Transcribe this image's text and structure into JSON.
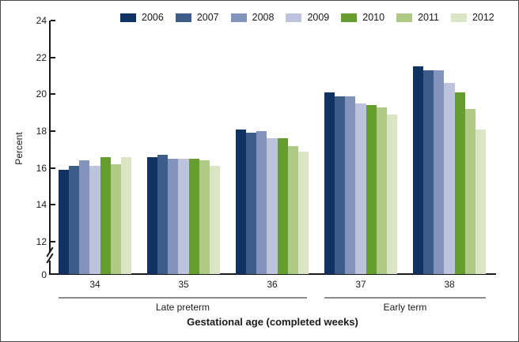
{
  "chart_data": {
    "type": "bar",
    "title": "",
    "ylabel": "Percent",
    "xlabel": "Gestational age (completed weeks)",
    "categories": [
      "34",
      "35",
      "36",
      "37",
      "38"
    ],
    "category_groups": [
      {
        "label": "Late preterm",
        "first_category": "34",
        "last_category": "36"
      },
      {
        "label": "Early term",
        "first_category": "37",
        "last_category": "38"
      }
    ],
    "series": [
      {
        "name": "2006",
        "color": "#0F3263",
        "values": [
          15.9,
          16.6,
          18.1,
          20.1,
          21.5
        ]
      },
      {
        "name": "2007",
        "color": "#3D5C8A",
        "values": [
          16.1,
          16.7,
          17.9,
          19.9,
          21.3
        ]
      },
      {
        "name": "2008",
        "color": "#8394BC",
        "values": [
          16.4,
          16.5,
          18.0,
          19.9,
          21.3
        ]
      },
      {
        "name": "2009",
        "color": "#BDC3DD",
        "values": [
          16.1,
          16.5,
          17.6,
          19.5,
          20.6
        ]
      },
      {
        "name": "2010",
        "color": "#669D2E",
        "values": [
          16.6,
          16.5,
          17.6,
          19.4,
          20.1
        ]
      },
      {
        "name": "2011",
        "color": "#AFCA85",
        "values": [
          16.2,
          16.4,
          17.2,
          19.3,
          19.2
        ]
      },
      {
        "name": "2012",
        "color": "#DAE5C5",
        "values": [
          16.6,
          16.1,
          16.9,
          18.9,
          18.1
        ]
      }
    ],
    "y_axis": {
      "ticks": [
        24,
        22,
        20,
        18,
        16,
        14,
        12
      ],
      "zero_label": "0",
      "broken_axis": true,
      "display_range": [
        12,
        24
      ]
    },
    "legend_position": "top",
    "grid": "off"
  }
}
